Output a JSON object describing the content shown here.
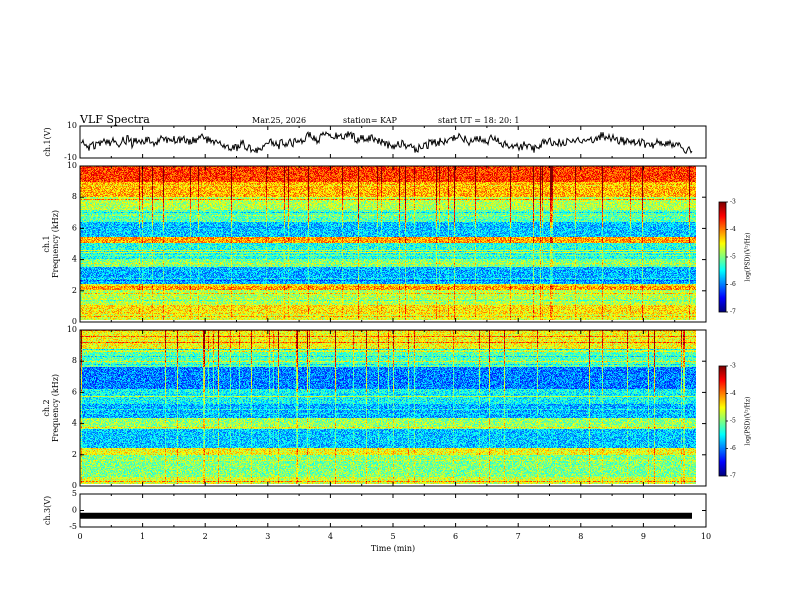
{
  "header": {
    "title": "VLF Spectra",
    "date": "Mar.25, 2026",
    "station": "station= KAP",
    "start": "start  UT =   18: 20: 1"
  },
  "chart_data": [
    {
      "type": "line",
      "name": "ch1-waveform",
      "ylabel": "ch.1(V)",
      "ylim": [
        -10,
        10
      ],
      "yticks": [
        "10",
        "-10"
      ],
      "xlim": [
        0,
        10
      ],
      "xlabel": ""
    },
    {
      "type": "heatmap",
      "name": "ch1-spectrogram",
      "ylabel": "ch.1\nFrequency (kHz)",
      "ylim": [
        0,
        10
      ],
      "xlim": [
        0,
        10
      ],
      "yticks": [
        "0",
        "2",
        "4",
        "6",
        "8",
        "10"
      ],
      "colorbar": {
        "label": "log(PSD)(V²/Hz)",
        "range": [
          -7,
          -3
        ],
        "ticks": [
          "-3",
          "-4",
          "-5",
          "-6",
          "-7"
        ]
      }
    },
    {
      "type": "heatmap",
      "name": "ch2-spectrogram",
      "ylabel": "ch.2\nFrequency (kHz)",
      "ylim": [
        0,
        10
      ],
      "xlim": [
        0,
        10
      ],
      "yticks": [
        "0",
        "2",
        "4",
        "6",
        "8",
        "10"
      ],
      "colorbar": {
        "label": "log(PSD)(V²/Hz)",
        "range": [
          -7,
          -3
        ],
        "ticks": [
          "-3",
          "-4",
          "-5",
          "-6",
          "-7"
        ]
      }
    },
    {
      "type": "line",
      "name": "ch3-waveform",
      "ylabel": "ch.3(V)",
      "ylim": [
        -5,
        5
      ],
      "yticks": [
        "5",
        "0",
        "-5"
      ],
      "xlim": [
        0,
        10
      ],
      "xlabel": "Time (min)",
      "xticks": [
        "0",
        "1",
        "2",
        "3",
        "4",
        "5",
        "6",
        "7",
        "8",
        "9",
        "10"
      ]
    }
  ]
}
